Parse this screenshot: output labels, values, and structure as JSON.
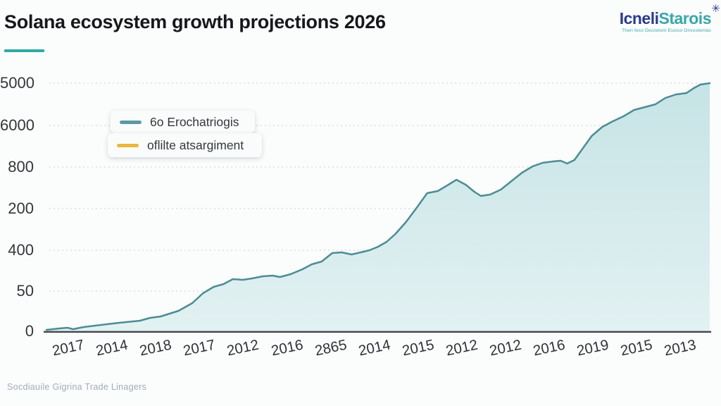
{
  "header": {
    "title": "Solana ecosystem growth projections 2026",
    "accent_color": "#2eaaa3",
    "logo": {
      "part1": "Icneli",
      "part2": "Starois",
      "part1_color": "#2b3a8c",
      "part2_color": "#38a6a9",
      "sparkle": "✳",
      "tagline": "Theri feco Decistiont Eusiso Onvustentas"
    }
  },
  "legend": [
    {
      "label": "6o Erochatriogis",
      "color": "#5b9aa2"
    },
    {
      "label": "oflilte atsargiment",
      "color": "#e9b83c"
    }
  ],
  "footer": {
    "source_text": "Socdiauile Gigrina Trade Linagers"
  },
  "chart_data": {
    "type": "area",
    "title": "Solana ecosystem growth projections 2026",
    "xlabel": "",
    "ylabel": "",
    "grid": "horizontal-dashed",
    "legend_position": "upper-left-inside",
    "value_range": [
      0,
      5000
    ],
    "y_ticks": [
      {
        "label": "5000",
        "value": 5000
      },
      {
        "label": "6000",
        "value": 4148
      },
      {
        "label": "800",
        "value": 3310
      },
      {
        "label": "200",
        "value": 2472
      },
      {
        "label": "400",
        "value": 1634
      },
      {
        "label": "50",
        "value": 810
      },
      {
        "label": "0",
        "value": 0
      }
    ],
    "x_ticks": [
      "2017",
      "2014",
      "2018",
      "2017",
      "2012",
      "2016",
      "2865",
      "2014",
      "2015",
      "2012",
      "2012",
      "2016",
      "2019",
      "2015",
      "2013"
    ],
    "series": [
      {
        "name": "6o Erochatriogis",
        "line_color": "#4d8c94",
        "fill_top": "#c0e1e3",
        "fill_bottom": "#e0f0f1",
        "points": [
          [
            0.0,
            28
          ],
          [
            0.019,
            57
          ],
          [
            0.032,
            71
          ],
          [
            0.04,
            43
          ],
          [
            0.056,
            85
          ],
          [
            0.082,
            128
          ],
          [
            0.109,
            170
          ],
          [
            0.141,
            213
          ],
          [
            0.156,
            270
          ],
          [
            0.172,
            298
          ],
          [
            0.199,
            412
          ],
          [
            0.22,
            568
          ],
          [
            0.236,
            767
          ],
          [
            0.252,
            895
          ],
          [
            0.267,
            952
          ],
          [
            0.281,
            1051
          ],
          [
            0.296,
            1037
          ],
          [
            0.31,
            1065
          ],
          [
            0.326,
            1108
          ],
          [
            0.341,
            1122
          ],
          [
            0.352,
            1094
          ],
          [
            0.368,
            1151
          ],
          [
            0.386,
            1250
          ],
          [
            0.4,
            1349
          ],
          [
            0.415,
            1406
          ],
          [
            0.431,
            1577
          ],
          [
            0.445,
            1591
          ],
          [
            0.46,
            1548
          ],
          [
            0.474,
            1591
          ],
          [
            0.487,
            1634
          ],
          [
            0.5,
            1705
          ],
          [
            0.513,
            1804
          ],
          [
            0.526,
            1960
          ],
          [
            0.542,
            2202
          ],
          [
            0.558,
            2486
          ],
          [
            0.574,
            2784
          ],
          [
            0.59,
            2827
          ],
          [
            0.606,
            2955
          ],
          [
            0.618,
            3054
          ],
          [
            0.632,
            2955
          ],
          [
            0.645,
            2813
          ],
          [
            0.655,
            2727
          ],
          [
            0.669,
            2756
          ],
          [
            0.685,
            2855
          ],
          [
            0.701,
            3026
          ],
          [
            0.717,
            3196
          ],
          [
            0.733,
            3324
          ],
          [
            0.748,
            3395
          ],
          [
            0.764,
            3423
          ],
          [
            0.775,
            3438
          ],
          [
            0.785,
            3381
          ],
          [
            0.796,
            3452
          ],
          [
            0.809,
            3693
          ],
          [
            0.822,
            3935
          ],
          [
            0.838,
            4119
          ],
          [
            0.854,
            4233
          ],
          [
            0.87,
            4332
          ],
          [
            0.886,
            4460
          ],
          [
            0.902,
            4517
          ],
          [
            0.918,
            4574
          ],
          [
            0.933,
            4702
          ],
          [
            0.949,
            4773
          ],
          [
            0.965,
            4801
          ],
          [
            0.976,
            4900
          ],
          [
            0.986,
            4972
          ],
          [
            1.0,
            5000
          ]
        ]
      },
      {
        "name": "oflilte atsargiment",
        "line_color": "#e9b83c",
        "points": []
      }
    ]
  }
}
